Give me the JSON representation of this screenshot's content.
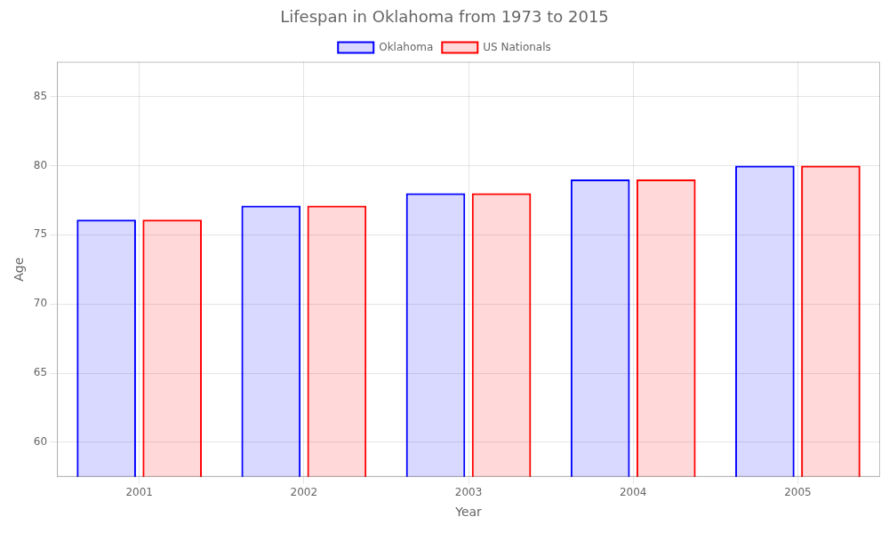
{
  "chart_data": {
    "type": "bar",
    "title": "Lifespan in Oklahoma from 1973 to 2015",
    "xlabel": "Year",
    "ylabel": "Age",
    "categories": [
      "2001",
      "2002",
      "2003",
      "2004",
      "2005"
    ],
    "series": [
      {
        "name": "Oklahoma",
        "color": "#0000ff",
        "values": [
          76.1,
          77.1,
          78.0,
          79.0,
          80.0
        ]
      },
      {
        "name": "US Nationals",
        "color": "#ff0000",
        "values": [
          76.1,
          77.1,
          78.0,
          79.0,
          80.0
        ]
      }
    ],
    "ylim": [
      57.5,
      87.5
    ],
    "yticks": [
      60,
      65,
      70,
      75,
      80,
      85
    ],
    "grid": true,
    "legend": "top"
  }
}
